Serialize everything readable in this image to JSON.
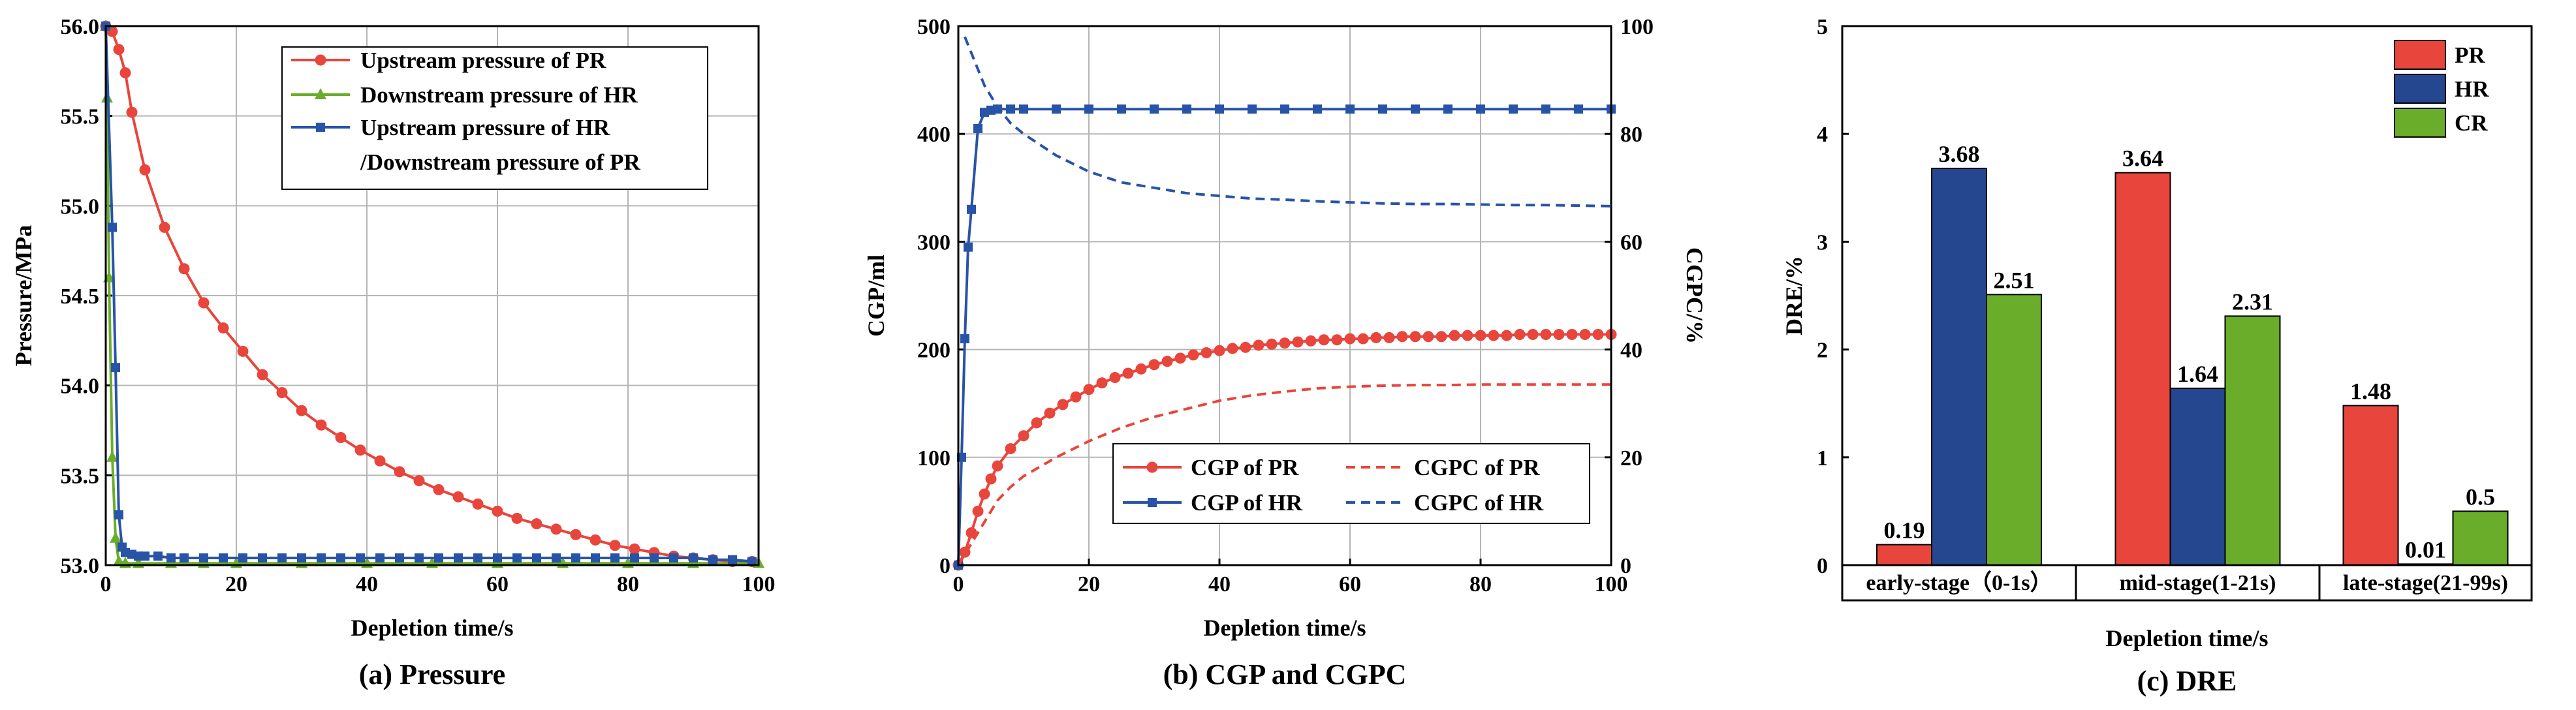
{
  "chart_data": [
    {
      "id": "a",
      "type": "line",
      "caption": "(a) Pressure",
      "xlabel": "Depletion time/s",
      "ylabel": "Pressure/MPa",
      "xlim": [
        0,
        100
      ],
      "ylim": [
        53.0,
        56.0
      ],
      "xticks": [
        0,
        20,
        40,
        60,
        80,
        100
      ],
      "yticks": [
        53.0,
        53.5,
        54.0,
        54.5,
        55.0,
        55.5,
        56.0
      ],
      "ytick_labels": [
        "53.0",
        "53.5",
        "54.0",
        "54.5",
        "55.0",
        "55.5",
        "56.0"
      ],
      "grid": true,
      "legend_position": "top-right",
      "series": [
        {
          "name": "Upstream pressure of PR",
          "legend_lines": [
            "Upstream pressure of PR"
          ],
          "color": "#e8453c",
          "marker": "circle",
          "dash": "solid",
          "x": [
            0,
            1,
            2,
            3,
            4,
            6,
            9,
            12,
            15,
            18,
            21,
            24,
            27,
            30,
            33,
            36,
            39,
            42,
            45,
            48,
            51,
            54,
            57,
            60,
            63,
            66,
            69,
            72,
            75,
            78,
            81,
            84,
            87,
            90,
            93,
            96,
            99
          ],
          "y": [
            56.0,
            55.97,
            55.87,
            55.74,
            55.52,
            55.2,
            54.88,
            54.65,
            54.46,
            54.32,
            54.19,
            54.06,
            53.96,
            53.86,
            53.78,
            53.71,
            53.64,
            53.58,
            53.52,
            53.47,
            53.42,
            53.38,
            53.34,
            53.3,
            53.26,
            53.23,
            53.2,
            53.17,
            53.14,
            53.11,
            53.09,
            53.07,
            53.05,
            53.04,
            53.03,
            53.02,
            53.02
          ]
        },
        {
          "name": "Downstream pressure of HR",
          "legend_lines": [
            "Downstream pressure of HR"
          ],
          "color": "#6aad2a",
          "marker": "triangle",
          "dash": "solid",
          "x": [
            0,
            0.2,
            0.5,
            1,
            1.5,
            2,
            3,
            5,
            10,
            15,
            20,
            30,
            40,
            50,
            60,
            70,
            80,
            90,
            100
          ],
          "y": [
            56.0,
            55.6,
            54.6,
            53.6,
            53.15,
            53.02,
            53.01,
            53.01,
            53.01,
            53.01,
            53.01,
            53.01,
            53.01,
            53.01,
            53.01,
            53.01,
            53.01,
            53.01,
            53.01
          ]
        },
        {
          "name": "Upstream pressure of HR/Downstream pressure of PR",
          "legend_lines": [
            "Upstream pressure of HR",
            "/Downstream pressure of PR"
          ],
          "color": "#2854a8",
          "marker": "square",
          "dash": "solid",
          "x": [
            0,
            1,
            1.5,
            2,
            2.5,
            3,
            4,
            5,
            6,
            8,
            10,
            12,
            15,
            18,
            21,
            24,
            27,
            30,
            33,
            36,
            39,
            42,
            45,
            48,
            51,
            54,
            57,
            60,
            63,
            66,
            69,
            72,
            75,
            78,
            81,
            84,
            87,
            90,
            93,
            96,
            99
          ],
          "y": [
            56.0,
            54.88,
            54.1,
            53.28,
            53.1,
            53.07,
            53.06,
            53.05,
            53.05,
            53.05,
            53.04,
            53.04,
            53.04,
            53.04,
            53.04,
            53.04,
            53.04,
            53.04,
            53.04,
            53.04,
            53.04,
            53.04,
            53.04,
            53.04,
            53.04,
            53.04,
            53.04,
            53.04,
            53.04,
            53.04,
            53.04,
            53.04,
            53.04,
            53.04,
            53.04,
            53.04,
            53.04,
            53.04,
            53.03,
            53.03,
            53.02
          ]
        }
      ]
    },
    {
      "id": "b",
      "type": "line",
      "caption": "(b) CGP and CGPC",
      "xlabel": "Depletion time/s",
      "ylabel": "CGP/ml",
      "ylabel_right": "CGPC/%",
      "xlim": [
        0,
        100
      ],
      "ylim": [
        0,
        500
      ],
      "ylim_right": [
        0,
        100
      ],
      "xticks": [
        0,
        20,
        40,
        60,
        80,
        100
      ],
      "yticks": [
        0,
        100,
        200,
        300,
        400,
        500
      ],
      "yticks_right": [
        0,
        20,
        40,
        60,
        80,
        100
      ],
      "grid": true,
      "legend_position": "bottom-right",
      "series": [
        {
          "name": "CGP of PR",
          "axis": "left",
          "color": "#e8453c",
          "marker": "circle",
          "dash": "solid",
          "x": [
            0,
            1,
            2,
            3,
            4,
            5,
            6,
            8,
            10,
            12,
            14,
            16,
            18,
            20,
            22,
            24,
            26,
            28,
            30,
            32,
            34,
            36,
            38,
            40,
            42,
            44,
            46,
            48,
            50,
            52,
            54,
            56,
            58,
            60,
            62,
            64,
            66,
            68,
            70,
            72,
            74,
            76,
            78,
            80,
            82,
            84,
            86,
            88,
            90,
            92,
            94,
            96,
            98,
            100
          ],
          "y": [
            0,
            12,
            30,
            50,
            66,
            80,
            92,
            108,
            120,
            132,
            141,
            149,
            156,
            163,
            169,
            174,
            178,
            182,
            186,
            189,
            192,
            195,
            197,
            199,
            201,
            202,
            204,
            205,
            206,
            207,
            208,
            209,
            209,
            210,
            210,
            211,
            211,
            212,
            212,
            212,
            212,
            213,
            213,
            213,
            213,
            213,
            214,
            214,
            214,
            214,
            214,
            214,
            214,
            214
          ]
        },
        {
          "name": "CGP of HR",
          "axis": "left",
          "color": "#2854a8",
          "marker": "square",
          "dash": "solid",
          "x": [
            0,
            0.5,
            1,
            1.5,
            2,
            3,
            4,
            5,
            6,
            8,
            10,
            15,
            20,
            25,
            30,
            35,
            40,
            45,
            50,
            55,
            60,
            65,
            70,
            75,
            80,
            85,
            90,
            95,
            100
          ],
          "y": [
            0,
            100,
            210,
            295,
            330,
            405,
            420,
            422,
            423,
            423,
            423,
            423,
            423,
            423,
            423,
            423,
            423,
            423,
            423,
            423,
            423,
            423,
            423,
            423,
            423,
            423,
            423,
            423,
            423
          ]
        },
        {
          "name": "CGPC of PR",
          "axis": "right",
          "color": "#e8453c",
          "marker": "none",
          "dash": "dashed",
          "x": [
            0,
            1,
            2,
            4,
            6,
            8,
            10,
            15,
            20,
            25,
            30,
            35,
            40,
            45,
            50,
            55,
            60,
            65,
            70,
            75,
            80,
            85,
            90,
            95,
            100
          ],
          "y": [
            0,
            2,
            4,
            8,
            12,
            14.5,
            16.5,
            20,
            23,
            25.5,
            27.5,
            29,
            30.5,
            31.5,
            32.2,
            32.8,
            33.1,
            33.3,
            33.4,
            33.4,
            33.5,
            33.5,
            33.5,
            33.5,
            33.5
          ]
        },
        {
          "name": "CGPC of HR",
          "axis": "right",
          "color": "#2854a8",
          "marker": "none",
          "dash": "dashed",
          "x": [
            1,
            2,
            3,
            4,
            5,
            6,
            8,
            10,
            15,
            20,
            25,
            30,
            35,
            40,
            45,
            50,
            55,
            60,
            65,
            70,
            75,
            80,
            85,
            90,
            95,
            100
          ],
          "y": [
            98,
            95,
            92,
            89,
            87,
            85,
            82,
            80,
            76,
            73,
            71,
            70,
            69,
            68.5,
            68,
            67.8,
            67.5,
            67.3,
            67.1,
            67,
            67,
            66.9,
            66.8,
            66.8,
            66.7,
            66.6
          ]
        }
      ]
    },
    {
      "id": "c",
      "type": "bar",
      "caption": "(c) DRE",
      "xlabel": "Depletion time/s",
      "ylabel": "DRE/%",
      "ylim": [
        0,
        5
      ],
      "yticks": [
        0,
        1,
        2,
        3,
        4,
        5
      ],
      "grid": false,
      "legend_position": "top-right",
      "categories": [
        "early-stage（0-1s）",
        "mid-stage(1-21s)",
        "late-stage(21-99s)"
      ],
      "series": [
        {
          "name": "PR",
          "color": "#e8453c",
          "values": [
            0.19,
            3.64,
            1.48
          ],
          "labels": [
            "0.19",
            "3.64",
            "1.48"
          ]
        },
        {
          "name": "HR",
          "color": "#24478f",
          "values": [
            3.68,
            1.64,
            0.01
          ],
          "labels": [
            "3.68",
            "1.64",
            "0.01"
          ]
        },
        {
          "name": "CR",
          "color": "#6aad2a",
          "values": [
            2.51,
            2.31,
            0.5
          ],
          "labels": [
            "2.51",
            "2.31",
            "0.5"
          ]
        }
      ]
    }
  ]
}
